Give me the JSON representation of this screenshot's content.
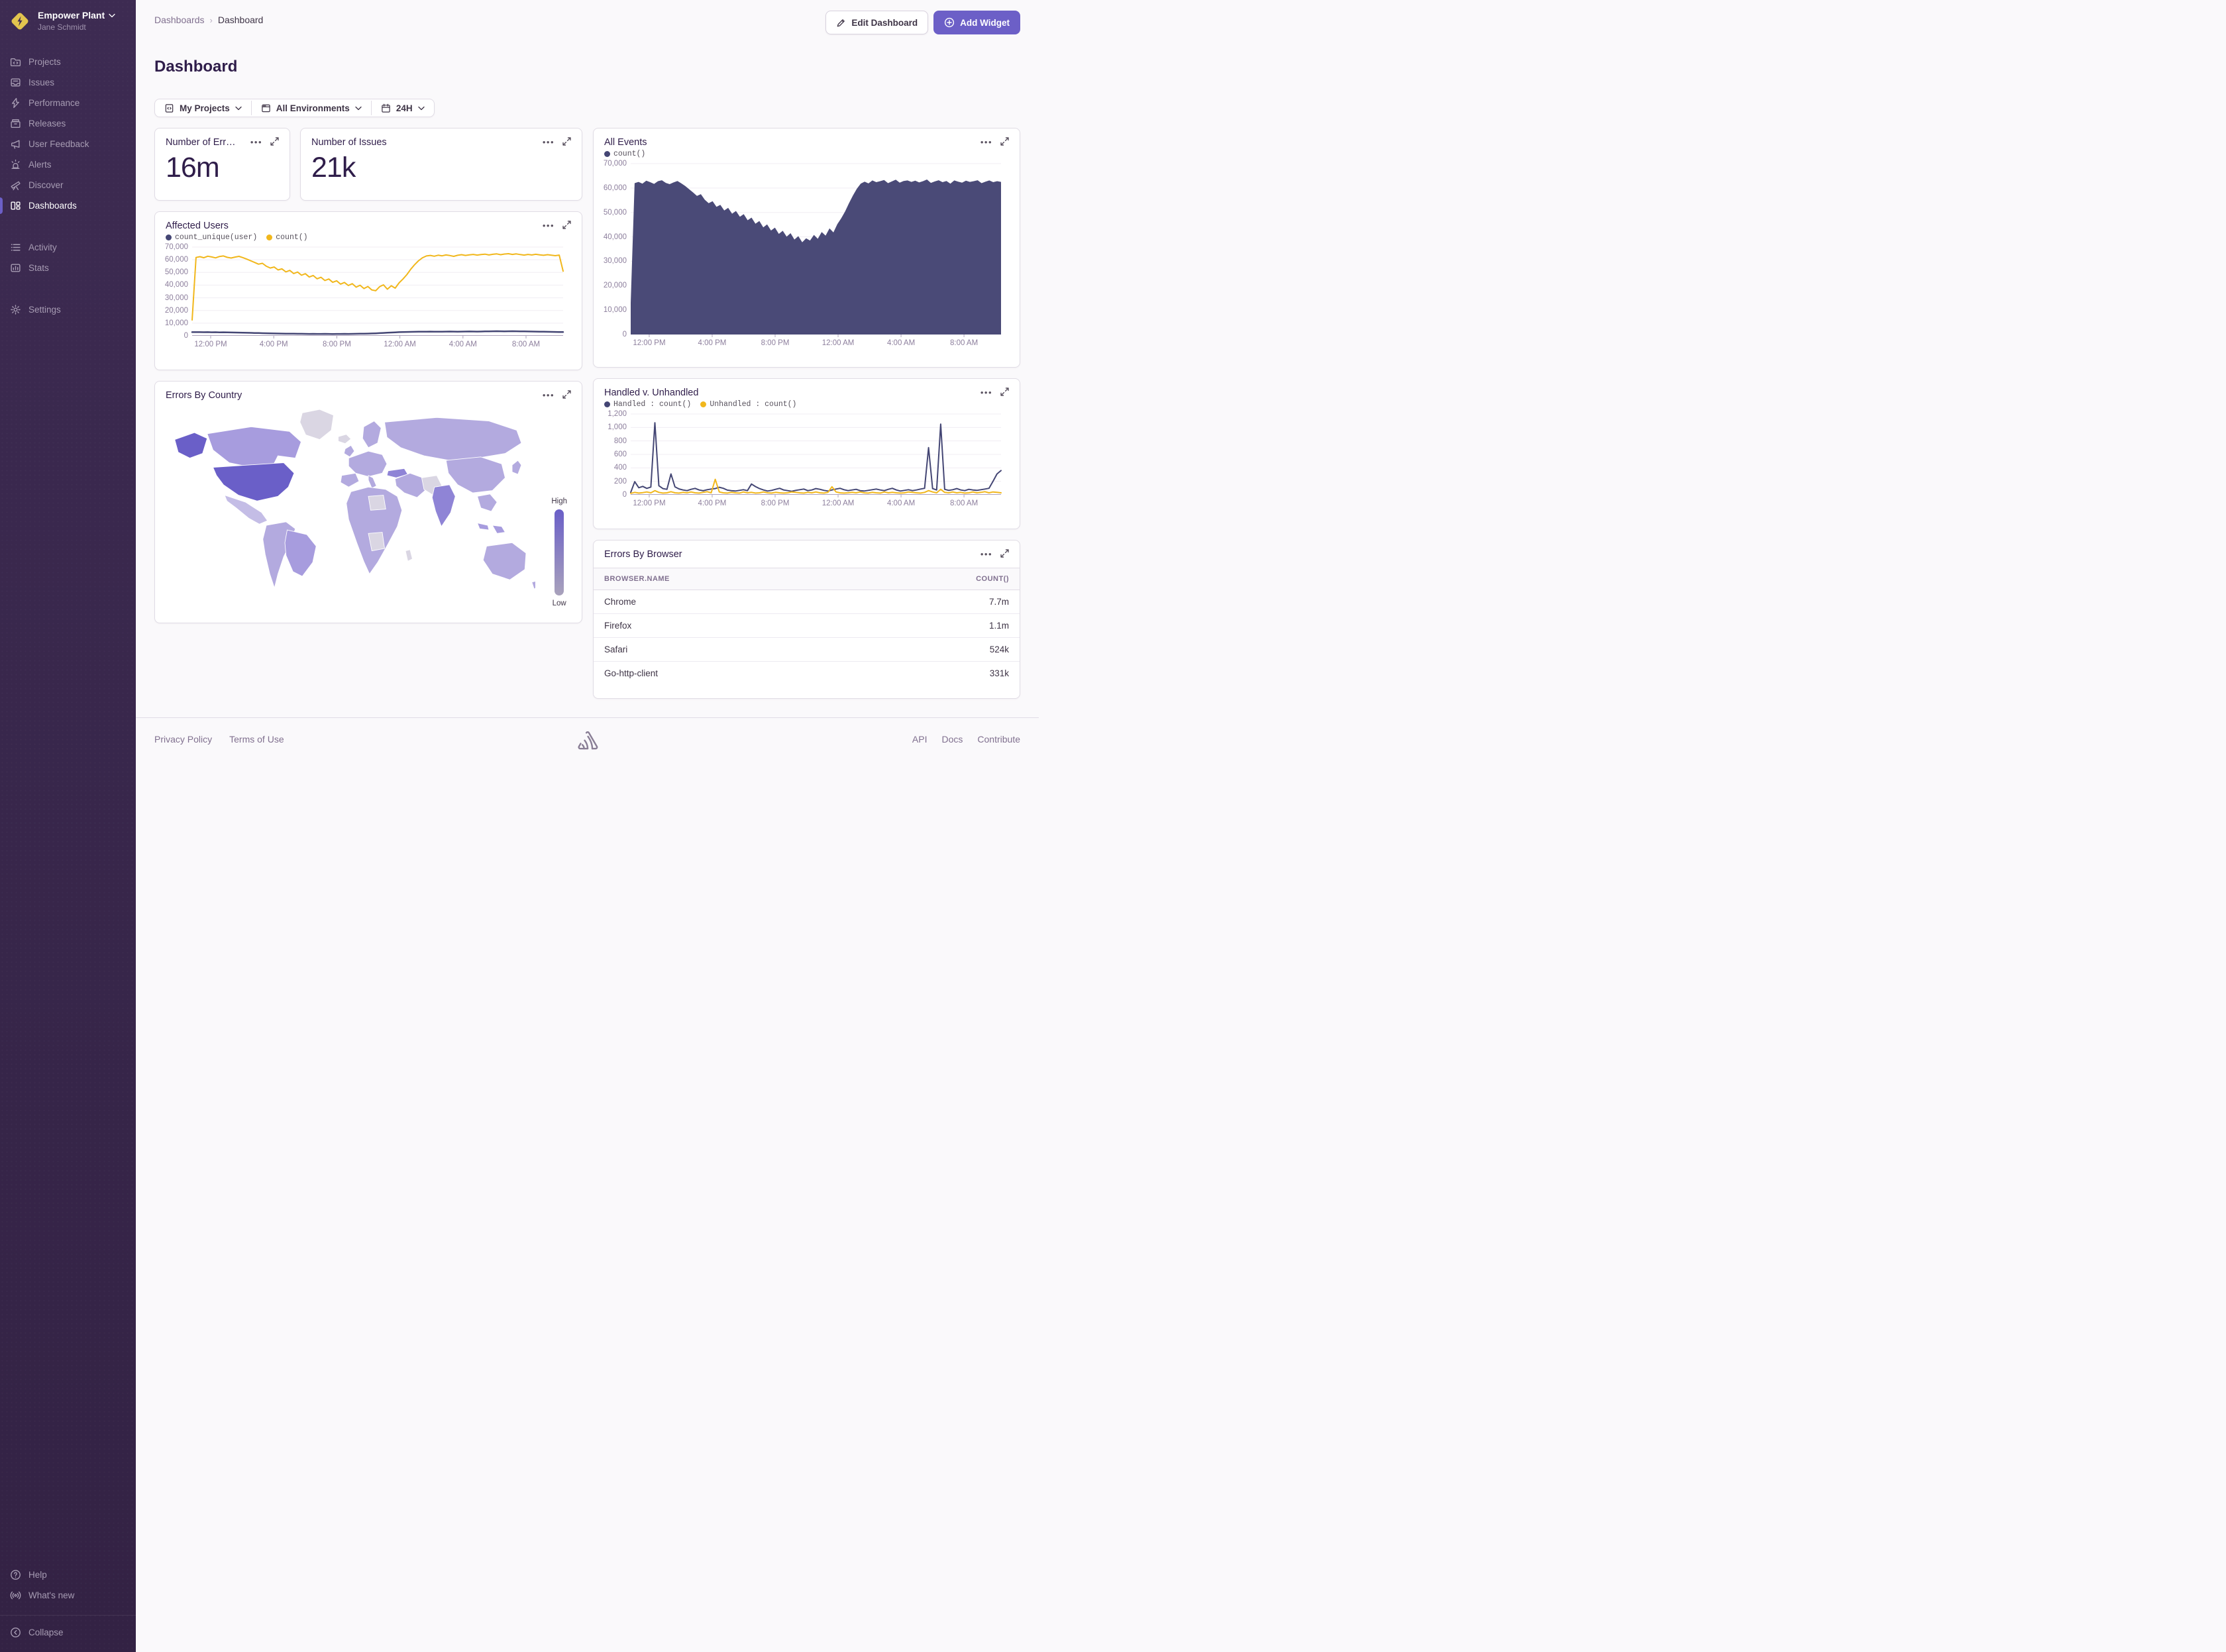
{
  "colors": {
    "accent": "#6C5FC7",
    "series_dark": "#444674",
    "series_yellow": "#F1B71C",
    "area_fill": "#4A4A77",
    "sidebar_active_bar": "#6C5FC7",
    "map_high": "#6A5FC8",
    "map_low_end": "#A9A2BC"
  },
  "sidebar": {
    "org": {
      "name": "Empower Plant",
      "user": "Jane Schmidt"
    },
    "items": [
      {
        "label": "Projects",
        "icon": "projects-icon"
      },
      {
        "label": "Issues",
        "icon": "issues-icon"
      },
      {
        "label": "Performance",
        "icon": "performance-icon"
      },
      {
        "label": "Releases",
        "icon": "releases-icon"
      },
      {
        "label": "User Feedback",
        "icon": "user-feedback-icon"
      },
      {
        "label": "Alerts",
        "icon": "alerts-icon"
      },
      {
        "label": "Discover",
        "icon": "discover-icon"
      },
      {
        "label": "Dashboards",
        "icon": "dashboards-icon",
        "active": true
      }
    ],
    "secondary": [
      {
        "label": "Activity",
        "icon": "activity-icon"
      },
      {
        "label": "Stats",
        "icon": "stats-icon"
      }
    ],
    "tertiary": [
      {
        "label": "Settings",
        "icon": "settings-icon"
      }
    ],
    "bottom": [
      {
        "label": "Help",
        "icon": "help-icon"
      },
      {
        "label": "What's new",
        "icon": "whats-new-icon"
      }
    ],
    "collapse": {
      "label": "Collapse",
      "icon": "collapse-icon"
    }
  },
  "header": {
    "breadcrumbs": [
      "Dashboards",
      "Dashboard"
    ],
    "title": "Dashboard",
    "edit_button": "Edit Dashboard",
    "add_button": "Add Widget"
  },
  "filters": {
    "projects": "My Projects",
    "environments": "All Environments",
    "time": "24H"
  },
  "cards": {
    "errors": {
      "title": "Number of Err…",
      "value": "16m"
    },
    "issues": {
      "title": "Number of Issues",
      "value": "21k"
    },
    "all_events": {
      "title": "All Events"
    },
    "affected_users": {
      "title": "Affected Users"
    },
    "errors_by_country": {
      "title": "Errors By Country",
      "legend_high": "High",
      "legend_low": "Low"
    },
    "handled": {
      "title": "Handled v. Unhandled"
    }
  },
  "table": {
    "title": "Errors By Browser",
    "columns": [
      "BROWSER.NAME",
      "COUNT()"
    ],
    "rows": [
      [
        "Chrome",
        "7.7m"
      ],
      [
        "Firefox",
        "1.1m"
      ],
      [
        "Safari",
        "524k"
      ],
      [
        "Go-http-client",
        "331k"
      ]
    ]
  },
  "footer": {
    "left": [
      "Privacy Policy",
      "Terms of Use"
    ],
    "right": [
      "API",
      "Docs",
      "Contribute"
    ]
  },
  "chart_data": [
    {
      "id": "all_events",
      "type": "area",
      "title": "All Events",
      "legend": [
        {
          "label": "count()",
          "color": "#444674"
        }
      ],
      "xlabel": "",
      "ylabel": "",
      "ylim": [
        0,
        70000
      ],
      "grid": true,
      "legend_position": "top-left",
      "x_ticks": [
        "12:00 PM",
        "4:00 PM",
        "8:00 PM",
        "12:00 AM",
        "4:00 AM",
        "8:00 AM"
      ],
      "y_tick_values": [
        70000,
        60000,
        50000,
        40000,
        30000,
        20000,
        10000,
        0
      ],
      "y_tick_labels": [
        "70,000",
        "60,000",
        "50,000",
        "40,000",
        "30,000",
        "20,000",
        "10,000",
        "0"
      ],
      "series": [
        {
          "name": "count()",
          "color": "#4A4A77",
          "values": [
            13000,
            62000,
            62500,
            61800,
            63000,
            62400,
            61700,
            62800,
            63200,
            62100,
            61600,
            62300,
            62900,
            61900,
            60800,
            59500,
            58200,
            56800,
            57500,
            55200,
            53800,
            54600,
            52300,
            53100,
            50800,
            51900,
            49500,
            50600,
            48200,
            49300,
            46800,
            47900,
            45400,
            46500,
            43900,
            45100,
            42600,
            43800,
            41200,
            42500,
            40100,
            41500,
            38900,
            40300,
            37800,
            39400,
            38500,
            40800,
            39200,
            42000,
            40500,
            43500,
            41800,
            45200,
            47600,
            50400,
            53800,
            56900,
            59700,
            61800,
            62600,
            61900,
            63100,
            62400,
            62800,
            63300,
            62000,
            62700,
            63400,
            62200,
            62900,
            63100,
            62500,
            63000,
            62300,
            62800,
            63500,
            62100,
            62700,
            63200,
            62400,
            62900,
            61800,
            63100,
            62600,
            62200,
            63000,
            62500,
            62800,
            63200,
            62000,
            62600,
            63100,
            62400,
            62800,
            62500
          ]
        }
      ]
    },
    {
      "id": "affected_users",
      "type": "line",
      "title": "Affected Users",
      "legend": [
        {
          "label": "count_unique(user)",
          "color": "#444674"
        },
        {
          "label": "count()",
          "color": "#F1B71C"
        }
      ],
      "xlabel": "",
      "ylabel": "",
      "ylim": [
        0,
        70000
      ],
      "grid": true,
      "legend_position": "top-left",
      "x_ticks": [
        "12:00 PM",
        "4:00 PM",
        "8:00 PM",
        "12:00 AM",
        "4:00 AM",
        "8:00 AM"
      ],
      "y_tick_values": [
        70000,
        60000,
        50000,
        40000,
        30000,
        20000,
        10000,
        0
      ],
      "y_tick_labels": [
        "70,000",
        "60,000",
        "50,000",
        "40,000",
        "30,000",
        "20,000",
        "10,000",
        "0"
      ],
      "series": [
        {
          "name": "count_unique(user)",
          "color": "#444674",
          "width": 2.5,
          "values": [
            2900,
            2950,
            2900,
            2850,
            2900,
            2800,
            2850,
            2750,
            2800,
            2700,
            2650,
            2600,
            2550,
            2500,
            2400,
            2350,
            2250,
            2200,
            2100,
            2050,
            1950,
            1900,
            1850,
            1800,
            1750,
            1700,
            1650,
            1600,
            1600,
            1550,
            1500,
            1550,
            1500,
            1500,
            1550,
            1500,
            1450,
            1500,
            1500,
            1550,
            1500,
            1550,
            1600,
            1650,
            1700,
            1800,
            1900,
            2000,
            2150,
            2300,
            2450,
            2600,
            2750,
            2900,
            3000,
            3100,
            3150,
            3200,
            3250,
            3300,
            3300,
            3350,
            3300,
            3250,
            3300,
            3350,
            3400,
            3350,
            3300,
            3350,
            3400,
            3450,
            3400,
            3350,
            3400,
            3500,
            3550,
            3600,
            3650,
            3600,
            3550,
            3600,
            3650,
            3600,
            3550,
            3500,
            3450,
            3400,
            3350,
            3300,
            3250,
            3200,
            3150,
            3100,
            3050,
            3000
          ]
        },
        {
          "name": "count()",
          "color": "#F1B71C",
          "width": 2,
          "values": [
            12500,
            61800,
            62400,
            61600,
            62800,
            62200,
            61500,
            62600,
            63000,
            61900,
            61400,
            62100,
            62700,
            61700,
            60500,
            59200,
            57900,
            56500,
            57200,
            54900,
            53500,
            54300,
            52000,
            52800,
            50400,
            51600,
            49100,
            50300,
            47800,
            49000,
            46400,
            47600,
            45000,
            46200,
            43600,
            44800,
            42200,
            43400,
            40800,
            42100,
            39700,
            41100,
            38400,
            39900,
            37300,
            38900,
            36200,
            35600,
            38700,
            40200,
            36800,
            39500,
            37600,
            41800,
            44800,
            48300,
            52600,
            56200,
            59300,
            61600,
            63000,
            63400,
            62800,
            63600,
            63100,
            63800,
            63300,
            62700,
            63500,
            64000,
            63400,
            63900,
            64200,
            63700,
            64100,
            64400,
            63800,
            64300,
            64600,
            64000,
            64500,
            64800,
            64200,
            64600,
            64100,
            63700,
            64200,
            63800,
            64300,
            63900,
            63500,
            64000,
            63600,
            63200,
            63700,
            51000
          ]
        }
      ]
    },
    {
      "id": "handled_unhandled",
      "type": "line",
      "title": "Handled v. Unhandled",
      "legend": [
        {
          "label": "Handled : count()",
          "color": "#444674"
        },
        {
          "label": "Unhandled : count()",
          "color": "#F1B71C"
        }
      ],
      "xlabel": "",
      "ylabel": "",
      "ylim": [
        0,
        1200
      ],
      "grid": true,
      "legend_position": "top-left",
      "x_ticks": [
        "12:00 PM",
        "4:00 PM",
        "8:00 PM",
        "12:00 AM",
        "4:00 AM",
        "8:00 AM"
      ],
      "y_tick_values": [
        1200,
        1000,
        800,
        600,
        400,
        200,
        0
      ],
      "y_tick_labels": [
        "1,200",
        "1,000",
        "800",
        "600",
        "400",
        "200",
        "0"
      ],
      "series": [
        {
          "name": "Handled : count()",
          "color": "#444674",
          "width": 2,
          "values": [
            35,
            195,
            105,
            125,
            95,
            115,
            1070,
            135,
            92,
            82,
            310,
            118,
            88,
            72,
            62,
            82,
            95,
            72,
            60,
            76,
            86,
            92,
            112,
            96,
            70,
            62,
            56,
            66,
            76,
            62,
            160,
            122,
            92,
            72,
            56,
            66,
            82,
            96,
            72,
            62,
            52,
            66,
            76,
            86,
            62,
            72,
            92,
            82,
            66,
            56,
            72,
            86,
            96,
            76,
            62,
            72,
            82,
            62,
            56,
            66,
            76,
            86,
            72,
            62,
            82,
            96,
            72,
            56,
            66,
            76,
            62,
            72,
            86,
            96,
            700,
            92,
            72,
            1050,
            82,
            66,
            76,
            92,
            72,
            62,
            82,
            72,
            66,
            76,
            86,
            96,
            200,
            310,
            360
          ]
        },
        {
          "name": "Unhandled : count()",
          "color": "#F1B71C",
          "width": 2,
          "values": [
            22,
            36,
            26,
            32,
            42,
            30,
            62,
            36,
            26,
            30,
            46,
            30,
            26,
            36,
            30,
            42,
            30,
            26,
            36,
            46,
            30,
            230,
            42,
            30,
            26,
            36,
            30,
            26,
            42,
            30,
            36,
            26,
            30,
            42,
            30,
            26,
            36,
            30,
            26,
            30,
            42,
            36,
            30,
            26,
            36,
            30,
            42,
            30,
            26,
            36,
            120,
            42,
            30,
            26,
            30,
            36,
            30,
            42,
            30,
            26,
            36,
            30,
            26,
            42,
            30,
            36,
            30,
            26,
            30,
            42,
            36,
            30,
            26,
            36,
            62,
            42,
            30,
            82,
            36,
            30,
            42,
            30,
            36,
            26,
            30,
            42,
            30,
            36,
            46,
            30,
            42,
            36,
            30
          ]
        }
      ]
    },
    {
      "id": "errors_by_country",
      "type": "choropleth",
      "title": "Errors By Country",
      "legend": [
        {
          "label": "High"
        },
        {
          "label": "Low"
        }
      ],
      "palette": {
        "high": "#6A5FC8",
        "medhigh": "#8F84D6",
        "medium": "#A79CDE",
        "low": "#B3AADF",
        "lower": "#C4BDE6",
        "none": "#DAD6E3"
      },
      "tiers": {
        "high": [
          "United States",
          "Alaska"
        ],
        "medhigh": [
          "India",
          "Turkey"
        ],
        "medium": [
          "Canada",
          "Brazil",
          "Indonesia"
        ],
        "low": [
          "Russia",
          "Europe",
          "China",
          "Australia",
          "Mexico",
          "Andean South America",
          "North & South Africa",
          "Southeast Asia",
          "Japan",
          "UK",
          "Scandinavia"
        ],
        "none": [
          "Greenland",
          "Iran",
          "Libya",
          "Central Africa",
          "Madagascar",
          "Iceland"
        ]
      }
    }
  ]
}
